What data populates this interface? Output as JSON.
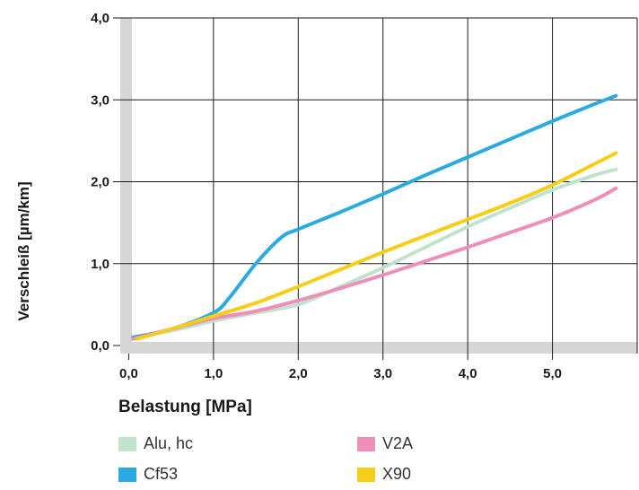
{
  "chart_data": {
    "type": "line",
    "title": "",
    "xlabel": "Belastung [MPa]",
    "ylabel": "Verschleiß [µm/km]",
    "xlim": [
      -0.1,
      6.0
    ],
    "ylim": [
      0.0,
      4.0
    ],
    "x_ticks": [
      {
        "value": 0,
        "label": "0,0"
      },
      {
        "value": 1,
        "label": "1,0"
      },
      {
        "value": 2,
        "label": "2,0"
      },
      {
        "value": 3,
        "label": "3,0"
      },
      {
        "value": 4,
        "label": "4,0"
      },
      {
        "value": 5,
        "label": "5,0"
      }
    ],
    "y_ticks": [
      {
        "value": 0,
        "label": "0,0"
      },
      {
        "value": 1,
        "label": "1,0"
      },
      {
        "value": 2,
        "label": "2,0"
      },
      {
        "value": 3,
        "label": "3,0"
      },
      {
        "value": 4,
        "label": "4,0"
      }
    ],
    "grid": true,
    "legend_position": "bottom",
    "series": [
      {
        "name": "Alu, hc",
        "color": "#bfe3cc",
        "x": [
          0.05,
          0.5,
          1.0,
          1.5,
          2.0,
          2.5,
          3.0,
          3.5,
          4.0,
          4.5,
          5.0,
          5.5,
          5.75
        ],
        "y": [
          0.1,
          0.18,
          0.3,
          0.4,
          0.5,
          0.72,
          0.95,
          1.2,
          1.45,
          1.68,
          1.9,
          2.08,
          2.15
        ]
      },
      {
        "name": "Cf53",
        "color": "#2aaae0",
        "x": [
          0.05,
          0.5,
          1.0,
          1.2,
          1.5,
          1.8,
          2.0,
          2.5,
          3.0,
          3.5,
          4.0,
          4.5,
          5.0,
          5.5,
          5.75
        ],
        "y": [
          0.1,
          0.2,
          0.4,
          0.6,
          1.0,
          1.32,
          1.42,
          1.63,
          1.85,
          2.08,
          2.3,
          2.52,
          2.74,
          2.95,
          3.05
        ]
      },
      {
        "name": "V2A",
        "color": "#ef8fb9",
        "x": [
          0.05,
          0.5,
          1.0,
          1.5,
          2.0,
          2.5,
          3.0,
          3.5,
          4.0,
          4.5,
          5.0,
          5.5,
          5.75
        ],
        "y": [
          0.08,
          0.2,
          0.33,
          0.42,
          0.55,
          0.7,
          0.86,
          1.03,
          1.2,
          1.38,
          1.56,
          1.78,
          1.92
        ]
      },
      {
        "name": "X90",
        "color": "#f7cd1c",
        "x": [
          0.1,
          0.5,
          1.0,
          1.5,
          2.0,
          2.5,
          3.0,
          3.5,
          4.0,
          4.5,
          5.0,
          5.5,
          5.75
        ],
        "y": [
          0.08,
          0.2,
          0.36,
          0.52,
          0.72,
          0.93,
          1.14,
          1.34,
          1.54,
          1.74,
          1.96,
          2.22,
          2.35
        ]
      }
    ]
  }
}
